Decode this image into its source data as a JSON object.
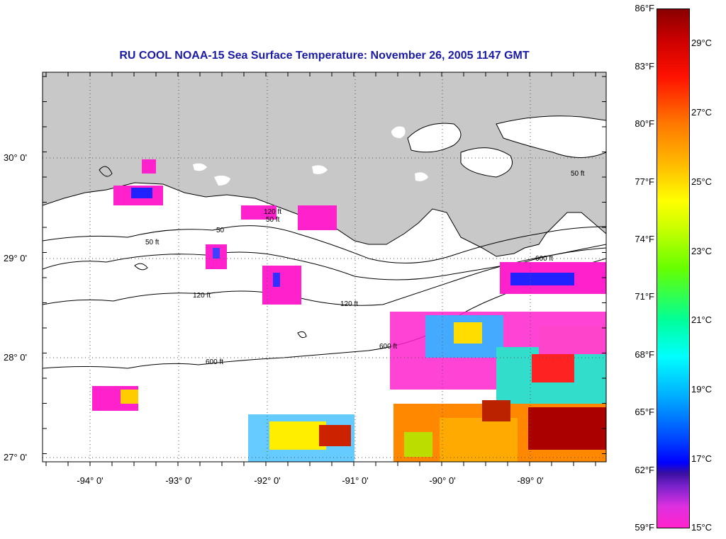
{
  "title": "RU COOL  NOAA-15  Sea Surface Temperature:  November 26, 2005 1147 GMT",
  "map": {
    "lon_range": [
      -94.5,
      -88.25
    ],
    "lat_range": [
      26.95,
      30.85
    ],
    "lat_labels": [
      "30° 0'",
      "29° 0'",
      "28° 0'",
      "27° 0'"
    ],
    "lon_labels": [
      "-94° 0'",
      "-93° 0'",
      "-92° 0'",
      "-91° 0'",
      "-90° 0'",
      "-89° 0'"
    ],
    "contour_labels": [
      "50 ft",
      "120 ft",
      "600 ft",
      "50",
      "50 ft",
      "120 ft",
      "600 ft",
      "120 ft",
      "600 ft",
      "50 ft"
    ],
    "colors": {
      "land": "#c8c8c8",
      "water": "#ffffff",
      "coast": "#000000",
      "grid": "#555555"
    }
  },
  "colorbar": {
    "f_labels": [
      "86°F",
      "83°F",
      "80°F",
      "77°F",
      "74°F",
      "71°F",
      "68°F",
      "65°F",
      "62°F",
      "59°F"
    ],
    "c_labels": [
      "29°C",
      "27°C",
      "25°C",
      "23°C",
      "21°C",
      "19°C",
      "17°C",
      "15°C"
    ]
  }
}
